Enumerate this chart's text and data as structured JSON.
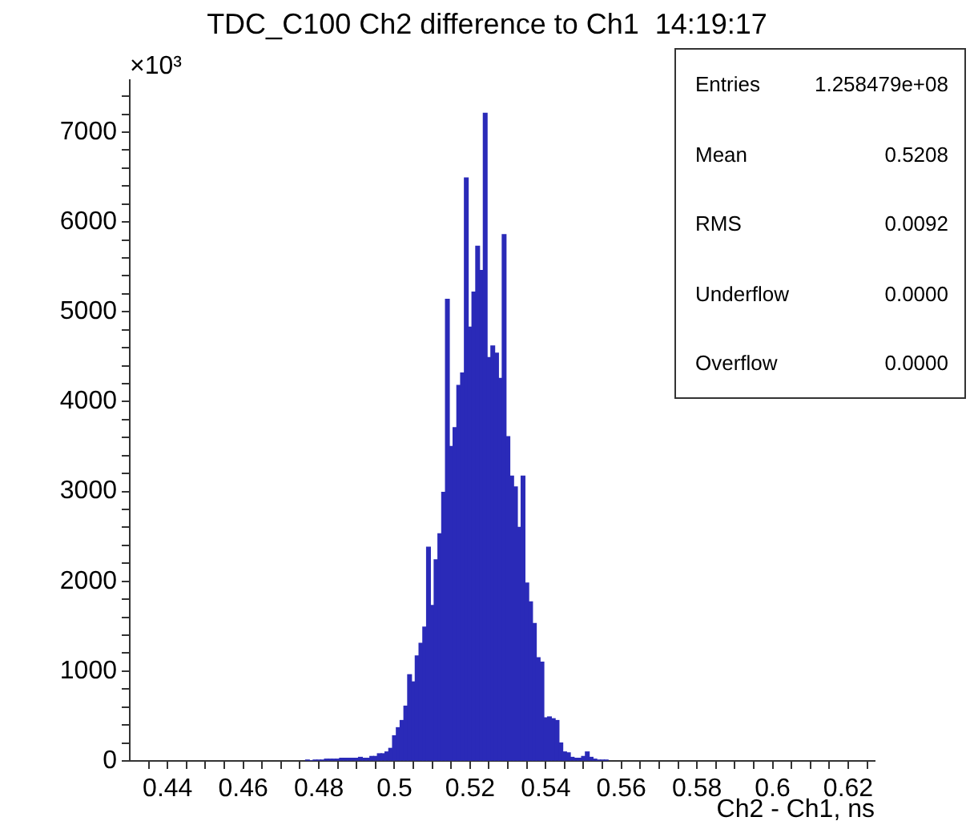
{
  "chart_data": {
    "type": "histogram",
    "title": "TDC_C100 Ch2 difference to Ch1  14:19:17",
    "xlabel": "Ch2 - Ch1, ns",
    "annotations": [
      "×10³",
      "Entries",
      "1.258479e+08",
      "Mean",
      "0.5208",
      "RMS",
      "0.0092",
      "Underflow",
      "0.0000",
      "Overflow",
      "0.0000"
    ],
    "bins": [
      0.4765,
      0.4775,
      0.4785,
      0.4795,
      0.4805,
      0.4815,
      0.4825,
      0.4835,
      0.4845,
      0.4855,
      0.4865,
      0.4875,
      0.4885,
      0.4895,
      0.4905,
      0.4915,
      0.4925,
      0.4935,
      0.4945,
      0.4955,
      0.4965,
      0.4975,
      0.4985,
      0.4995,
      0.5005,
      0.5015,
      0.5025,
      0.5035,
      0.5045,
      0.5055,
      0.5065,
      0.5075,
      0.5085,
      0.5095,
      0.5105,
      0.5115,
      0.5125,
      0.5135,
      0.5145,
      0.5155,
      0.5165,
      0.5175,
      0.5185,
      0.5195,
      0.5205,
      0.5215,
      0.5225,
      0.5235,
      0.5245,
      0.5255,
      0.5265,
      0.5275,
      0.5285,
      0.5295,
      0.5305,
      0.5315,
      0.5325,
      0.5335,
      0.5345,
      0.5355,
      0.5365,
      0.5375,
      0.5385,
      0.5395,
      0.5405,
      0.5415,
      0.5425,
      0.5435,
      0.5445,
      0.5455,
      0.5465,
      0.5475,
      0.5485,
      0.5495,
      0.5505,
      0.5515,
      0.5525,
      0.5535,
      0.5545,
      0.5555,
      0.5565
    ],
    "values": [
      10,
      0,
      10,
      10,
      10,
      20,
      20,
      20,
      20,
      30,
      30,
      30,
      30,
      30,
      40,
      30,
      30,
      50,
      50,
      80,
      80,
      100,
      140,
      280,
      370,
      450,
      610,
      960,
      880,
      1170,
      1310,
      1490,
      2380,
      1730,
      2240,
      2530,
      2990,
      5140,
      3500,
      3710,
      4180,
      4320,
      6490,
      4830,
      5220,
      5730,
      5460,
      7210,
      4490,
      4620,
      4540,
      4260,
      5860,
      3610,
      3170,
      3050,
      2600,
      3170,
      1980,
      1770,
      1530,
      1150,
      1100,
      480,
      490,
      470,
      450,
      200,
      100,
      90,
      40,
      30,
      30,
      50,
      100,
      40,
      20,
      10,
      10,
      10
    ],
    "color": "#2a2ab8",
    "xlim": [
      0.43,
      0.627
    ],
    "xticks": [
      {
        "value": 0.435,
        "label": null
      },
      0.44,
      {
        "value": 0.445,
        "label": null
      },
      {
        "value": 0.45,
        "label": null
      },
      {
        "value": 0.455,
        "label": null
      },
      0.46,
      {
        "value": 0.465,
        "label": null
      },
      {
        "value": 0.47,
        "label": null
      },
      {
        "value": 0.475,
        "label": null
      },
      0.48,
      {
        "value": 0.485,
        "label": null
      },
      {
        "value": 0.49,
        "label": null
      },
      {
        "value": 0.495,
        "label": null
      },
      0.5,
      {
        "value": 0.505,
        "label": null
      },
      {
        "value": 0.51,
        "label": null
      },
      {
        "value": 0.515,
        "label": null
      },
      0.52,
      {
        "value": 0.525,
        "label": null
      },
      {
        "value": 0.53,
        "label": null
      },
      {
        "value": 0.535,
        "label": null
      },
      0.54,
      {
        "value": 0.545,
        "label": null
      },
      {
        "value": 0.55,
        "label": null
      },
      {
        "value": 0.555,
        "label": null
      },
      0.56,
      {
        "value": 0.565,
        "label": null
      },
      {
        "value": 0.57,
        "label": null
      },
      {
        "value": 0.575,
        "label": null
      },
      0.58,
      {
        "value": 0.585,
        "label": null
      },
      {
        "value": 0.59,
        "label": null
      },
      {
        "value": 0.595,
        "label": null
      },
      0.6,
      {
        "value": 0.605,
        "label": null
      },
      {
        "value": 0.61,
        "label": null
      },
      {
        "value": 0.615,
        "label": null
      },
      0.62,
      {
        "value": 0.625,
        "label": null
      }
    ],
    "ylim": [
      0,
      7580
    ],
    "yticks": [
      0,
      {
        "value": 200,
        "label": null
      },
      {
        "value": 400,
        "label": null
      },
      {
        "value": 600,
        "label": null
      },
      {
        "value": 800,
        "label": null
      },
      1000,
      {
        "value": 1200,
        "label": null
      },
      {
        "value": 1400,
        "label": null
      },
      {
        "value": 1600,
        "label": null
      },
      {
        "value": 1800,
        "label": null
      },
      2000,
      {
        "value": 2200,
        "label": null
      },
      {
        "value": 2400,
        "label": null
      },
      {
        "value": 2600,
        "label": null
      },
      {
        "value": 2800,
        "label": null
      },
      3000,
      {
        "value": 3200,
        "label": null
      },
      {
        "value": 3400,
        "label": null
      },
      {
        "value": 3600,
        "label": null
      },
      {
        "value": 3800,
        "label": null
      },
      4000,
      {
        "value": 4200,
        "label": null
      },
      {
        "value": 4400,
        "label": null
      },
      {
        "value": 4600,
        "label": null
      },
      {
        "value": 4800,
        "label": null
      },
      5000,
      {
        "value": 5200,
        "label": null
      },
      {
        "value": 5400,
        "label": null
      },
      {
        "value": 5600,
        "label": null
      },
      {
        "value": 5800,
        "label": null
      },
      6000,
      {
        "value": 6200,
        "label": null
      },
      {
        "value": 6400,
        "label": null
      },
      {
        "value": 6600,
        "label": null
      },
      {
        "value": 6800,
        "label": null
      },
      7000,
      {
        "value": 7200,
        "label": null
      },
      {
        "value": 7400,
        "label": null
      }
    ],
    "grid": false,
    "legend": false
  }
}
